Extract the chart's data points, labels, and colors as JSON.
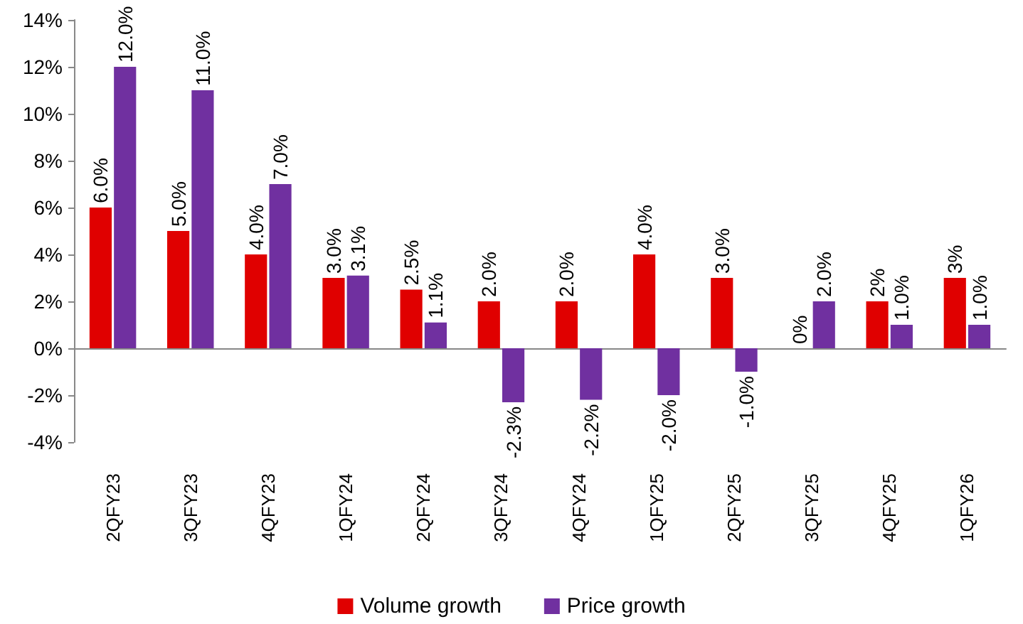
{
  "chart_data": {
    "type": "bar",
    "categories": [
      "2QFY23",
      "3QFY23",
      "4QFY23",
      "1QFY24",
      "2QFY24",
      "3QFY24",
      "4QFY24",
      "1QFY25",
      "2QFY25",
      "3QFY25",
      "4QFY25",
      "1QFY26"
    ],
    "series": [
      {
        "name": "Volume growth",
        "color": "#e00000",
        "values": [
          6,
          5,
          4,
          3,
          2.5,
          2,
          2,
          4,
          3,
          0,
          2,
          3
        ],
        "value_labels": [
          "6.0%",
          "5.0%",
          "4.0%",
          "3.0%",
          "2.5%",
          "2.0%",
          "2.0%",
          "4.0%",
          "3.0%",
          "0%",
          "2%",
          "3%"
        ]
      },
      {
        "name": "Price growth",
        "color": "#7030a0",
        "values": [
          12,
          11,
          7,
          3.1,
          1.1,
          -2.3,
          -2.2,
          -2.0,
          -1.0,
          2.0,
          1.0,
          1.0
        ],
        "value_labels": [
          "12.0%",
          "11.0%",
          "7.0%",
          "3.1%",
          "1.1%",
          "-2.3%",
          "-2.2%",
          "-2.0%",
          "-1.0%",
          "2.0%",
          "1.0%",
          "1.0%"
        ]
      }
    ],
    "ylim": [
      -4,
      14
    ],
    "yticks": [
      {
        "value": -4,
        "label": "-4%"
      },
      {
        "value": -2,
        "label": "-2%"
      },
      {
        "value": 0,
        "label": "0%"
      },
      {
        "value": 2,
        "label": "2%"
      },
      {
        "value": 4,
        "label": "4%"
      },
      {
        "value": 6,
        "label": "6%"
      },
      {
        "value": 8,
        "label": "8%"
      },
      {
        "value": 10,
        "label": "10%"
      },
      {
        "value": 12,
        "label": "12%"
      },
      {
        "value": 14,
        "label": "14%"
      }
    ],
    "legend": "bottom"
  }
}
